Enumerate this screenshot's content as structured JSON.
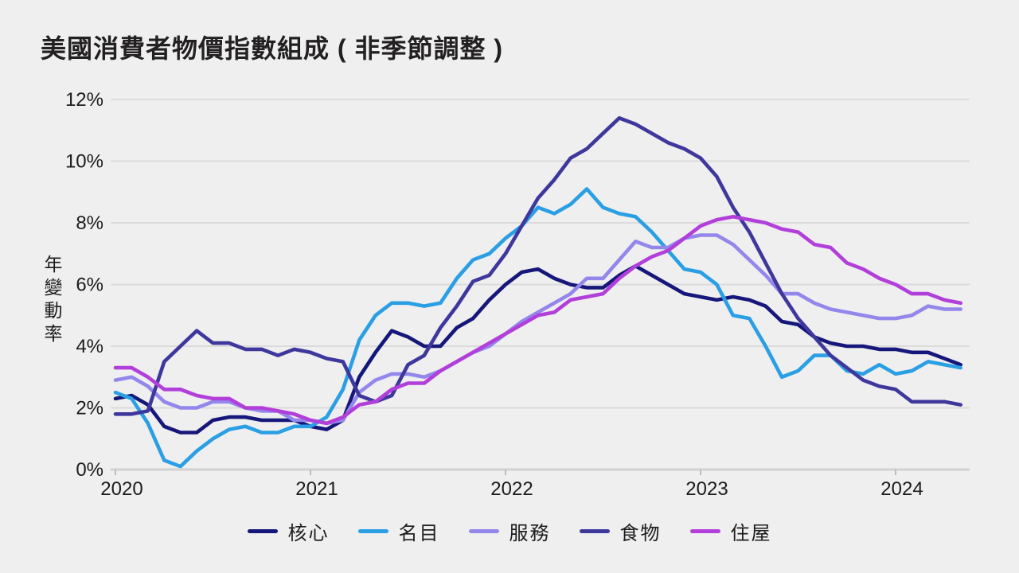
{
  "title": "美國消費者物價指數組成 ( 非季節調整 )",
  "axes": {
    "y_title": "年變動率",
    "y_tick_labels": [
      "0%",
      "2%",
      "4%",
      "6%",
      "8%",
      "10%",
      "12%"
    ],
    "x_tick_labels": [
      "2020",
      "2021",
      "2022",
      "2023",
      "2024"
    ]
  },
  "colors": {
    "background": "#efeff0",
    "gridline": "#dcdbdb",
    "axis_line": "#d3d2d2",
    "tick": "#bdbcbc",
    "text": "#1c1c1c"
  },
  "chart_data": {
    "type": "line",
    "title": "美國消費者物價指數組成 ( 非季節調整 )",
    "xlabel": "",
    "ylabel": "年變動率",
    "ylim": [
      0,
      12
    ],
    "y_tick_step": 2,
    "grid": "horizontal",
    "legend_position": "bottom",
    "x_start": "2020-01",
    "x_end": "2024-05",
    "x_interval": "monthly",
    "x_tick_years": [
      "2020",
      "2021",
      "2022",
      "2023",
      "2024"
    ],
    "series": [
      {
        "name": "核心",
        "color": "#15177a",
        "values": [
          2.3,
          2.4,
          2.1,
          1.4,
          1.2,
          1.2,
          1.6,
          1.7,
          1.7,
          1.6,
          1.6,
          1.6,
          1.4,
          1.3,
          1.6,
          3.0,
          3.8,
          4.5,
          4.3,
          4.0,
          4.0,
          4.6,
          4.9,
          5.5,
          6.0,
          6.4,
          6.5,
          6.2,
          6.0,
          5.9,
          5.9,
          6.3,
          6.6,
          6.3,
          6.0,
          5.7,
          5.6,
          5.5,
          5.6,
          5.5,
          5.3,
          4.8,
          4.7,
          4.3,
          4.1,
          4.0,
          4.0,
          3.9,
          3.9,
          3.8,
          3.8,
          3.6,
          3.4
        ]
      },
      {
        "name": "名目",
        "color": "#2b9fe4",
        "values": [
          2.5,
          2.3,
          1.5,
          0.3,
          0.1,
          0.6,
          1.0,
          1.3,
          1.4,
          1.2,
          1.2,
          1.4,
          1.4,
          1.7,
          2.6,
          4.2,
          5.0,
          5.4,
          5.4,
          5.3,
          5.4,
          6.2,
          6.8,
          7.0,
          7.5,
          7.9,
          8.5,
          8.3,
          8.6,
          9.1,
          8.5,
          8.3,
          8.2,
          7.7,
          7.1,
          6.5,
          6.4,
          6.0,
          5.0,
          4.9,
          4.0,
          3.0,
          3.2,
          3.7,
          3.7,
          3.2,
          3.1,
          3.4,
          3.1,
          3.2,
          3.5,
          3.4,
          3.3
        ]
      },
      {
        "name": "服務",
        "color": "#9487ec",
        "values": [
          2.9,
          3.0,
          2.7,
          2.2,
          2.0,
          2.0,
          2.2,
          2.2,
          2.0,
          1.9,
          1.9,
          1.6,
          1.6,
          1.5,
          1.6,
          2.5,
          2.9,
          3.1,
          3.1,
          3.0,
          3.2,
          3.5,
          3.8,
          4.0,
          4.4,
          4.8,
          5.1,
          5.4,
          5.7,
          6.2,
          6.2,
          6.8,
          7.4,
          7.2,
          7.2,
          7.5,
          7.6,
          7.6,
          7.3,
          6.8,
          6.3,
          5.7,
          5.7,
          5.4,
          5.2,
          5.1,
          5.0,
          4.9,
          4.9,
          5.0,
          5.3,
          5.2,
          5.2
        ]
      },
      {
        "name": "食物",
        "color": "#3e389d",
        "values": [
          1.8,
          1.8,
          1.9,
          3.5,
          4.0,
          4.5,
          4.1,
          4.1,
          3.9,
          3.9,
          3.7,
          3.9,
          3.8,
          3.6,
          3.5,
          2.4,
          2.2,
          2.4,
          3.4,
          3.7,
          4.6,
          5.3,
          6.1,
          6.3,
          7.0,
          7.9,
          8.8,
          9.4,
          10.1,
          10.4,
          10.9,
          11.4,
          11.2,
          10.9,
          10.6,
          10.4,
          10.1,
          9.5,
          8.5,
          7.7,
          6.7,
          5.7,
          4.9,
          4.3,
          3.7,
          3.3,
          2.9,
          2.7,
          2.6,
          2.2,
          2.2,
          2.2,
          2.1
        ]
      },
      {
        "name": "住屋",
        "color": "#b23fda",
        "values": [
          3.3,
          3.3,
          3.0,
          2.6,
          2.6,
          2.4,
          2.3,
          2.3,
          2.0,
          2.0,
          1.9,
          1.8,
          1.6,
          1.5,
          1.7,
          2.1,
          2.2,
          2.6,
          2.8,
          2.8,
          3.2,
          3.5,
          3.8,
          4.1,
          4.4,
          4.7,
          5.0,
          5.1,
          5.5,
          5.6,
          5.7,
          6.2,
          6.6,
          6.9,
          7.1,
          7.5,
          7.9,
          8.1,
          8.2,
          8.1,
          8.0,
          7.8,
          7.7,
          7.3,
          7.2,
          6.7,
          6.5,
          6.2,
          6.0,
          5.7,
          5.7,
          5.5,
          5.4
        ]
      }
    ]
  }
}
